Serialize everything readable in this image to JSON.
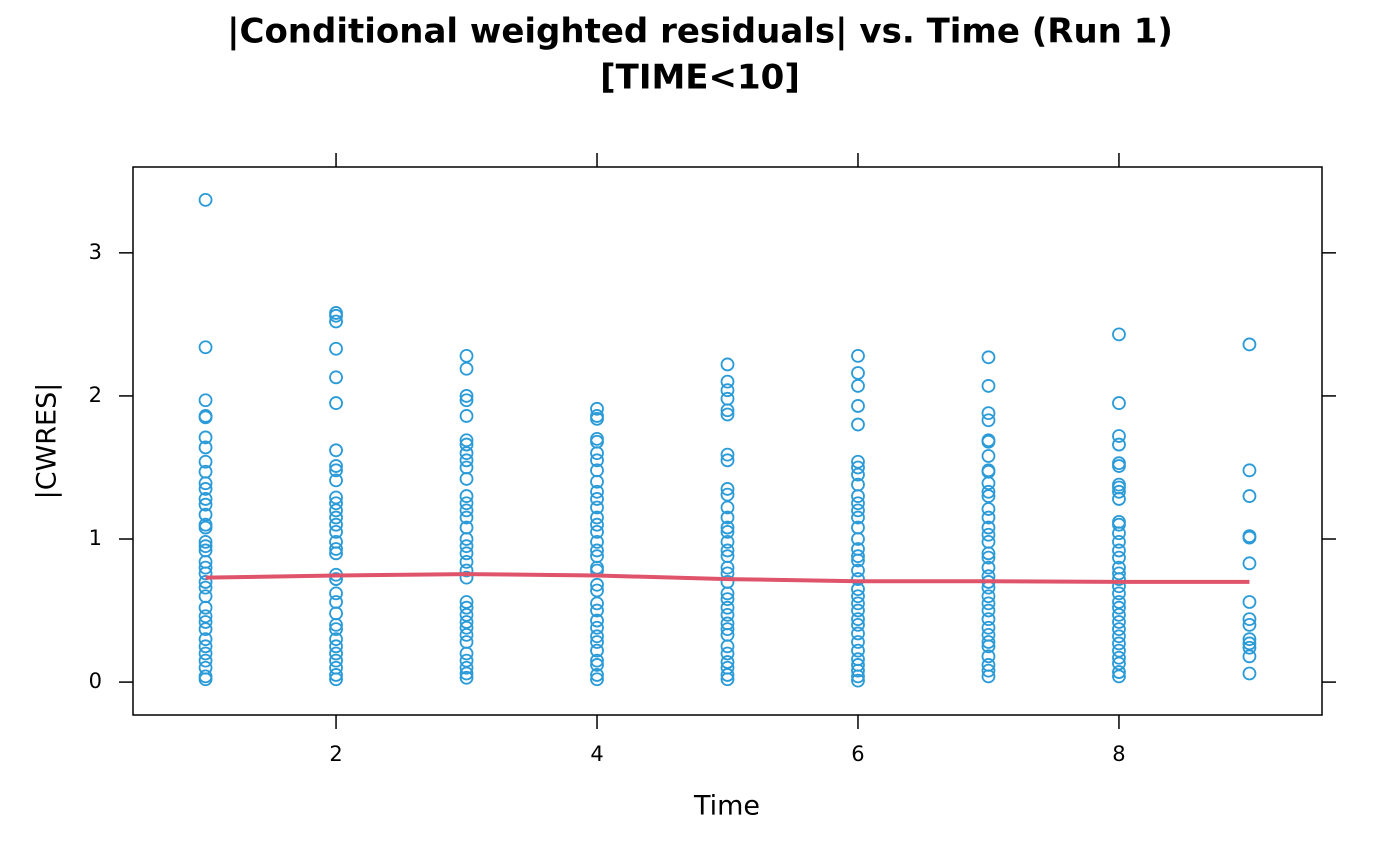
{
  "chart_data": {
    "type": "scatter",
    "title": "|Conditional weighted residuals| vs. Time (Run 1)",
    "subtitle": "[TIME<10]",
    "x_label": "Time",
    "y_label": "|CWRES|",
    "xlim": [
      0.444,
      9.556
    ],
    "ylim": [
      -0.23,
      3.6
    ],
    "xticks": [
      2,
      4,
      6,
      8
    ],
    "yticks": [
      0,
      1,
      2,
      3
    ],
    "point_color": "#2b9bd8",
    "groups": [
      {
        "x": 1,
        "values": [
          3.37,
          2.34,
          1.97,
          1.86,
          1.85,
          1.71,
          1.64,
          1.54,
          1.47,
          1.39,
          1.35,
          1.28,
          1.24,
          1.17,
          1.1,
          1.08,
          0.98,
          0.95,
          0.92,
          0.84,
          0.8,
          0.76,
          0.7,
          0.66,
          0.6,
          0.52,
          0.46,
          0.42,
          0.37,
          0.3,
          0.25,
          0.2,
          0.15,
          0.1,
          0.04,
          0.02
        ]
      },
      {
        "x": 2,
        "values": [
          2.58,
          2.56,
          2.52,
          2.33,
          2.13,
          1.95,
          1.62,
          1.51,
          1.48,
          1.41,
          1.29,
          1.25,
          1.2,
          1.15,
          1.1,
          1.05,
          0.98,
          0.93,
          0.9,
          0.75,
          0.72,
          0.62,
          0.56,
          0.48,
          0.4,
          0.37,
          0.3,
          0.25,
          0.2,
          0.15,
          0.1,
          0.05,
          0.02
        ]
      },
      {
        "x": 3,
        "values": [
          2.28,
          2.19,
          2.0,
          1.97,
          1.86,
          1.69,
          1.66,
          1.6,
          1.55,
          1.5,
          1.42,
          1.3,
          1.25,
          1.2,
          1.15,
          1.08,
          1.0,
          0.95,
          0.9,
          0.84,
          0.78,
          0.73,
          0.56,
          0.52,
          0.47,
          0.42,
          0.38,
          0.33,
          0.28,
          0.2,
          0.15,
          0.1,
          0.06,
          0.03
        ]
      },
      {
        "x": 4,
        "values": [
          1.91,
          1.86,
          1.84,
          1.7,
          1.68,
          1.6,
          1.55,
          1.48,
          1.4,
          1.33,
          1.28,
          1.22,
          1.15,
          1.1,
          1.05,
          0.98,
          0.92,
          0.88,
          0.8,
          0.78,
          0.68,
          0.64,
          0.55,
          0.5,
          0.43,
          0.38,
          0.32,
          0.28,
          0.22,
          0.15,
          0.12,
          0.05,
          0.02
        ]
      },
      {
        "x": 5,
        "values": [
          2.22,
          2.1,
          2.04,
          1.98,
          1.9,
          1.87,
          1.59,
          1.55,
          1.35,
          1.31,
          1.22,
          1.15,
          1.08,
          1.05,
          0.98,
          0.92,
          0.88,
          0.8,
          0.76,
          0.7,
          0.62,
          0.58,
          0.52,
          0.47,
          0.41,
          0.37,
          0.33,
          0.25,
          0.2,
          0.14,
          0.1,
          0.05,
          0.02
        ]
      },
      {
        "x": 6,
        "values": [
          2.28,
          2.16,
          2.07,
          1.93,
          1.8,
          1.54,
          1.5,
          1.45,
          1.38,
          1.3,
          1.25,
          1.2,
          1.15,
          1.08,
          1.0,
          0.93,
          0.88,
          0.85,
          0.78,
          0.72,
          0.65,
          0.6,
          0.55,
          0.5,
          0.44,
          0.4,
          0.34,
          0.28,
          0.22,
          0.16,
          0.12,
          0.08,
          0.04,
          0.01
        ]
      },
      {
        "x": 7,
        "values": [
          2.27,
          2.07,
          1.88,
          1.83,
          1.69,
          1.68,
          1.58,
          1.48,
          1.47,
          1.39,
          1.33,
          1.3,
          1.21,
          1.15,
          1.08,
          1.03,
          0.98,
          0.9,
          0.87,
          0.8,
          0.74,
          0.7,
          0.66,
          0.6,
          0.55,
          0.5,
          0.44,
          0.38,
          0.33,
          0.28,
          0.25,
          0.18,
          0.12,
          0.08,
          0.04
        ]
      },
      {
        "x": 8,
        "values": [
          2.43,
          1.95,
          1.72,
          1.66,
          1.53,
          1.51,
          1.38,
          1.36,
          1.33,
          1.28,
          1.12,
          1.1,
          1.04,
          0.98,
          0.92,
          0.87,
          0.8,
          0.76,
          0.72,
          0.67,
          0.62,
          0.56,
          0.52,
          0.47,
          0.42,
          0.37,
          0.32,
          0.27,
          0.22,
          0.17,
          0.13,
          0.07,
          0.04
        ]
      },
      {
        "x": 9,
        "values": [
          2.36,
          1.48,
          1.3,
          1.02,
          1.01,
          0.83,
          0.56,
          0.44,
          0.4,
          0.3,
          0.27,
          0.24,
          0.18,
          0.06
        ]
      }
    ],
    "smooth": {
      "color": "#df536b",
      "x": [
        1,
        2,
        3,
        4,
        5,
        6,
        7,
        8,
        9
      ],
      "values": [
        0.73,
        0.745,
        0.755,
        0.745,
        0.72,
        0.705,
        0.705,
        0.7,
        0.7
      ]
    }
  }
}
